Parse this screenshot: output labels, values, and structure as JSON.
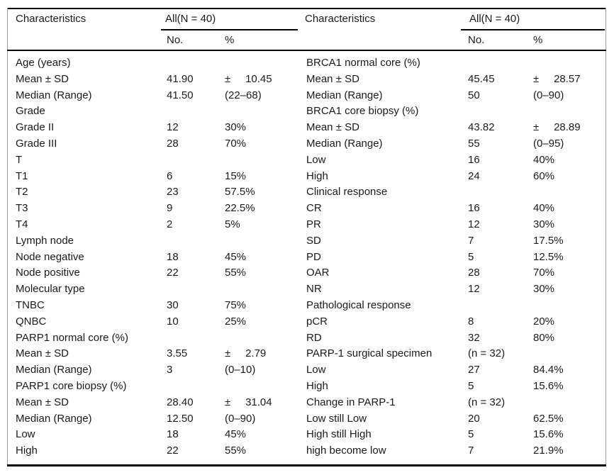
{
  "colors": {
    "background": "#ffffff",
    "text": "#1a1a1a",
    "rule": "#000000",
    "frame_line": "#a0a0a0"
  },
  "table": {
    "left": {
      "header": {
        "characteristics": "Characteristics",
        "group": "All(N = 40)",
        "col_no": "No.",
        "col_pct": "%"
      },
      "rows": [
        {
          "label": "Age (years)",
          "no": "",
          "pct": ""
        },
        {
          "label": "Mean ± SD",
          "no": "41.90",
          "pct": "±     10.45"
        },
        {
          "label": "Median (Range)",
          "no": "41.50",
          "pct": "(22–68)"
        },
        {
          "label": "Grade",
          "no": "",
          "pct": ""
        },
        {
          "label": "Grade II",
          "no": "12",
          "pct": "30%"
        },
        {
          "label": "Grade III",
          "no": "28",
          "pct": "70%"
        },
        {
          "label": "T",
          "no": "",
          "pct": ""
        },
        {
          "label": "T1",
          "no": "6",
          "pct": "15%"
        },
        {
          "label": "T2",
          "no": "23",
          "pct": "57.5%"
        },
        {
          "label": "T3",
          "no": "9",
          "pct": "22.5%"
        },
        {
          "label": "T4",
          "no": "2",
          "pct": "5%"
        },
        {
          "label": "Lymph node",
          "no": "",
          "pct": ""
        },
        {
          "label": "Node negative",
          "no": "18",
          "pct": "45%"
        },
        {
          "label": "Node positive",
          "no": "22",
          "pct": "55%"
        },
        {
          "label": "Molecular type",
          "no": "",
          "pct": ""
        },
        {
          "label": "TNBC",
          "no": "30",
          "pct": "75%"
        },
        {
          "label": "QNBC",
          "no": "10",
          "pct": "25%"
        },
        {
          "label": "PARP1 normal core (%)",
          "no": "",
          "pct": ""
        },
        {
          "label": "Mean ± SD",
          "no": "3.55",
          "pct": "±     2.79"
        },
        {
          "label": "Median (Range)",
          "no": "3",
          "pct": "(0–10)"
        },
        {
          "label": "PARP1 core biopsy (%)",
          "no": "",
          "pct": ""
        },
        {
          "label": "Mean ± SD",
          "no": "28.40",
          "pct": "±     31.04"
        },
        {
          "label": "Median (Range)",
          "no": "12.50",
          "pct": "(0–90)"
        },
        {
          "label": "Low",
          "no": "18",
          "pct": "45%"
        },
        {
          "label": "High",
          "no": "22",
          "pct": "55%"
        }
      ]
    },
    "right": {
      "header": {
        "characteristics": "Characteristics",
        "group": "All(N = 40)",
        "col_no": "No.",
        "col_pct": "%"
      },
      "rows": [
        {
          "label": "BRCA1 normal core (%)",
          "no": "",
          "pct": ""
        },
        {
          "label": "Mean ± SD",
          "no": "45.45",
          "pct": "±     28.57"
        },
        {
          "label": "Median (Range)",
          "no": "50",
          "pct": "(0–90)"
        },
        {
          "label": "BRCA1 core biopsy (%)",
          "no": "",
          "pct": ""
        },
        {
          "label": "Mean ± SD",
          "no": "43.82",
          "pct": "±     28.89"
        },
        {
          "label": "Median (Range)",
          "no": "55",
          "pct": "(0–95)"
        },
        {
          "label": "Low",
          "no": "16",
          "pct": "40%"
        },
        {
          "label": "High",
          "no": "24",
          "pct": "60%"
        },
        {
          "label": "Clinical response",
          "no": "",
          "pct": ""
        },
        {
          "label": "CR",
          "no": "16",
          "pct": "40%"
        },
        {
          "label": "PR",
          "no": "12",
          "pct": "30%"
        },
        {
          "label": "SD",
          "no": "7",
          "pct": "17.5%"
        },
        {
          "label": "PD",
          "no": "5",
          "pct": "12.5%"
        },
        {
          "label": "OAR",
          "no": "28",
          "pct": "70%"
        },
        {
          "label": "NR",
          "no": "12",
          "pct": "30%"
        },
        {
          "label": "Pathological response",
          "no": "",
          "pct": ""
        },
        {
          "label": "pCR",
          "no": "8",
          "pct": "20%"
        },
        {
          "label": "RD",
          "no": "32",
          "pct": "80%"
        },
        {
          "label": "PARP-1 surgical specimen",
          "no": "(n = 32)",
          "pct": ""
        },
        {
          "label": "Low",
          "no": "27",
          "pct": "84.4%"
        },
        {
          "label": "High",
          "no": "5",
          "pct": "15.6%"
        },
        {
          "label": "Change in PARP-1",
          "no": "(n = 32)",
          "pct": ""
        },
        {
          "label": "Low still Low",
          "no": "20",
          "pct": "62.5%"
        },
        {
          "label": "High still High",
          "no": "5",
          "pct": "15.6%"
        },
        {
          "label": "high become low",
          "no": "7",
          "pct": "21.9%"
        }
      ]
    }
  }
}
